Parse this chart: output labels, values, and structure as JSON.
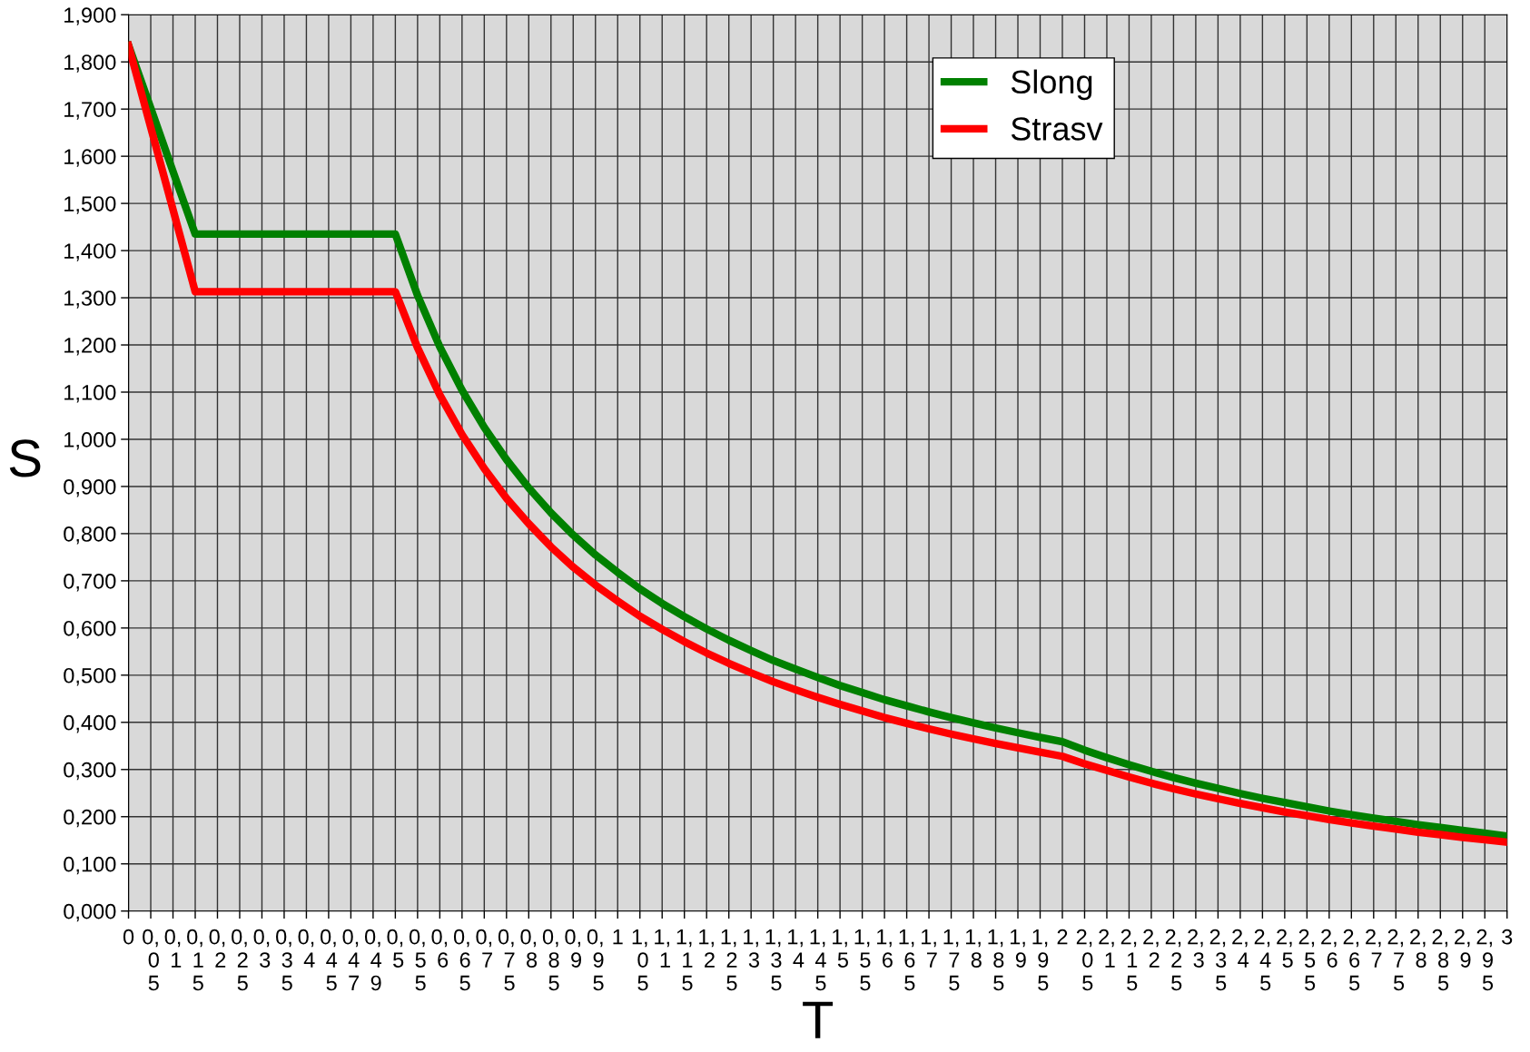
{
  "chart_data": {
    "type": "line",
    "xlabel": "T",
    "ylabel": "S",
    "categories": [
      "0",
      "0,05",
      "0,1",
      "0,15",
      "0,2",
      "0,25",
      "0,3",
      "0,35",
      "0,4",
      "0,45",
      "0,47",
      "0,49",
      "0,5",
      "0,55",
      "0,6",
      "0,65",
      "0,7",
      "0,75",
      "0,8",
      "0,85",
      "0,9",
      "0,95",
      "1",
      "1,05",
      "1,1",
      "1,15",
      "1,2",
      "1,25",
      "1,3",
      "1,35",
      "1,4",
      "1,45",
      "1,5",
      "1,55",
      "1,6",
      "1,65",
      "1,7",
      "1,75",
      "1,8",
      "1,85",
      "1,9",
      "1,95",
      "2",
      "2,05",
      "2,1",
      "2,15",
      "2,2",
      "2,25",
      "2,3",
      "2,35",
      "2,4",
      "2,45",
      "2,5",
      "2,55",
      "2,6",
      "2,65",
      "2,7",
      "2,75",
      "2,8",
      "2,85",
      "2,9",
      "2,95",
      "3"
    ],
    "series": [
      {
        "name": "Slong",
        "color": "#008000",
        "values": [
          1.835,
          1.702,
          1.568,
          1.435,
          1.435,
          1.435,
          1.435,
          1.435,
          1.435,
          1.435,
          1.435,
          1.435,
          1.435,
          1.305,
          1.196,
          1.104,
          1.025,
          0.957,
          0.897,
          0.844,
          0.797,
          0.755,
          0.718,
          0.683,
          0.652,
          0.624,
          0.598,
          0.574,
          0.552,
          0.531,
          0.513,
          0.495,
          0.478,
          0.463,
          0.448,
          0.435,
          0.422,
          0.41,
          0.399,
          0.388,
          0.378,
          0.368,
          0.359,
          0.341,
          0.325,
          0.31,
          0.296,
          0.283,
          0.271,
          0.26,
          0.249,
          0.239,
          0.23,
          0.221,
          0.212,
          0.204,
          0.197,
          0.19,
          0.183,
          0.177,
          0.171,
          0.165,
          0.159
        ]
      },
      {
        "name": "Strasv",
        "color": "#ff0000",
        "values": [
          1.835,
          1.661,
          1.487,
          1.313,
          1.313,
          1.313,
          1.313,
          1.313,
          1.313,
          1.313,
          1.313,
          1.313,
          1.313,
          1.194,
          1.094,
          1.01,
          0.938,
          0.875,
          0.821,
          0.772,
          0.729,
          0.691,
          0.657,
          0.625,
          0.597,
          0.571,
          0.547,
          0.525,
          0.505,
          0.486,
          0.469,
          0.453,
          0.438,
          0.424,
          0.41,
          0.398,
          0.386,
          0.375,
          0.365,
          0.355,
          0.346,
          0.337,
          0.328,
          0.312,
          0.298,
          0.284,
          0.271,
          0.259,
          0.248,
          0.238,
          0.228,
          0.219,
          0.21,
          0.202,
          0.194,
          0.187,
          0.18,
          0.174,
          0.167,
          0.162,
          0.156,
          0.151,
          0.146
        ]
      }
    ],
    "ylim": [
      0,
      1.9
    ],
    "yticks": [
      {
        "value": 0,
        "label": "0,000"
      },
      {
        "value": 0.1,
        "label": "0,100"
      },
      {
        "value": 0.2,
        "label": "0,200"
      },
      {
        "value": 0.3,
        "label": "0,300"
      },
      {
        "value": 0.4,
        "label": "0,400"
      },
      {
        "value": 0.5,
        "label": "0,500"
      },
      {
        "value": 0.6,
        "label": "0,600"
      },
      {
        "value": 0.7,
        "label": "0,700"
      },
      {
        "value": 0.8,
        "label": "0,800"
      },
      {
        "value": 0.9,
        "label": "0,900"
      },
      {
        "value": 1.0,
        "label": "1,000"
      },
      {
        "value": 1.1,
        "label": "1,100"
      },
      {
        "value": 1.2,
        "label": "1,200"
      },
      {
        "value": 1.3,
        "label": "1,300"
      },
      {
        "value": 1.4,
        "label": "1,400"
      },
      {
        "value": 1.5,
        "label": "1,500"
      },
      {
        "value": 1.6,
        "label": "1,600"
      },
      {
        "value": 1.7,
        "label": "1,700"
      },
      {
        "value": 1.8,
        "label": "1,800"
      },
      {
        "value": 1.9,
        "label": "1,900"
      }
    ],
    "grid": true,
    "legend": "top right",
    "marker": "none",
    "line_style": "solid"
  }
}
